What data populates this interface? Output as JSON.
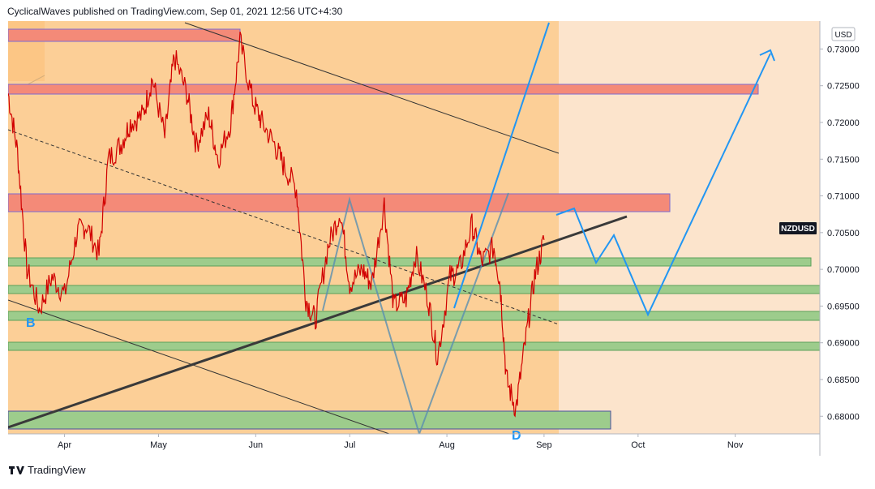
{
  "header": {
    "publisher_text": "CyclicalWaves published on TradingView.com, Sep 01, 2021 12:56 UTC+4:30"
  },
  "footer": {
    "brand": "TradingView",
    "logo_icon": "tradingview-logo-icon"
  },
  "colors": {
    "background": "#fce4cc",
    "orange_zone": "#fbc98a",
    "red_zone": "#f4857a",
    "green_zone": "#9dcc8c",
    "price_line": "#d10000",
    "projection": "#2196f3",
    "channel_line": "#333333"
  },
  "chart_data": {
    "type": "line",
    "symbol": "NZDUSD",
    "currency": "USD",
    "title": "",
    "xlabel": "",
    "ylabel": "",
    "x_tick_labels": [
      "Apr",
      "May",
      "Jun",
      "Jul",
      "Aug",
      "Sep",
      "Oct",
      "Nov"
    ],
    "y_tick_labels": [
      "0.73000",
      "0.72500",
      "0.72000",
      "0.71500",
      "0.71000",
      "0.70500",
      "0.70000",
      "0.69500",
      "0.69000",
      "0.68500",
      "0.68000"
    ],
    "ylim": [
      0.6776,
      0.7338
    ],
    "xlim": [
      "2021-03-14",
      "2021-11-28"
    ],
    "series": [
      {
        "x": [
          "2021-03-14",
          "2021-03-17",
          "2021-03-20",
          "2021-03-24",
          "2021-03-28",
          "2021-04-01",
          "2021-04-05",
          "2021-04-08",
          "2021-04-12",
          "2021-04-15",
          "2021-04-19",
          "2021-04-22",
          "2021-04-26",
          "2021-04-29",
          "2021-05-03",
          "2021-05-06",
          "2021-05-10",
          "2021-05-13",
          "2021-05-17",
          "2021-05-20",
          "2021-05-24",
          "2021-05-27",
          "2021-05-31",
          "2021-06-03",
          "2021-06-07",
          "2021-06-10",
          "2021-06-14",
          "2021-06-17",
          "2021-06-20",
          "2021-06-24",
          "2021-06-28",
          "2021-07-01",
          "2021-07-05",
          "2021-07-08",
          "2021-07-12",
          "2021-07-15",
          "2021-07-19",
          "2021-07-22",
          "2021-07-26",
          "2021-07-29",
          "2021-08-02",
          "2021-08-05",
          "2021-08-09",
          "2021-08-12",
          "2021-08-16",
          "2021-08-18",
          "2021-08-20",
          "2021-08-23",
          "2021-08-26",
          "2021-08-29",
          "2021-09-01"
        ],
        "values": [
          0.724,
          0.716,
          0.7,
          0.6945,
          0.699,
          0.6965,
          0.705,
          0.706,
          0.702,
          0.715,
          0.717,
          0.72,
          0.721,
          0.726,
          0.718,
          0.729,
          0.724,
          0.717,
          0.721,
          0.715,
          0.72,
          0.731,
          0.723,
          0.72,
          0.717,
          0.714,
          0.711,
          0.696,
          0.693,
          0.703,
          0.708,
          0.698,
          0.7,
          0.698,
          0.709,
          0.695,
          0.696,
          0.702,
          0.696,
          0.688,
          0.699,
          0.7,
          0.706,
          0.701,
          0.703,
          0.698,
          0.685,
          0.681,
          0.69,
          0.699,
          0.704
        ]
      }
    ],
    "channel_label": "B",
    "channel_label_bottom": "D"
  }
}
